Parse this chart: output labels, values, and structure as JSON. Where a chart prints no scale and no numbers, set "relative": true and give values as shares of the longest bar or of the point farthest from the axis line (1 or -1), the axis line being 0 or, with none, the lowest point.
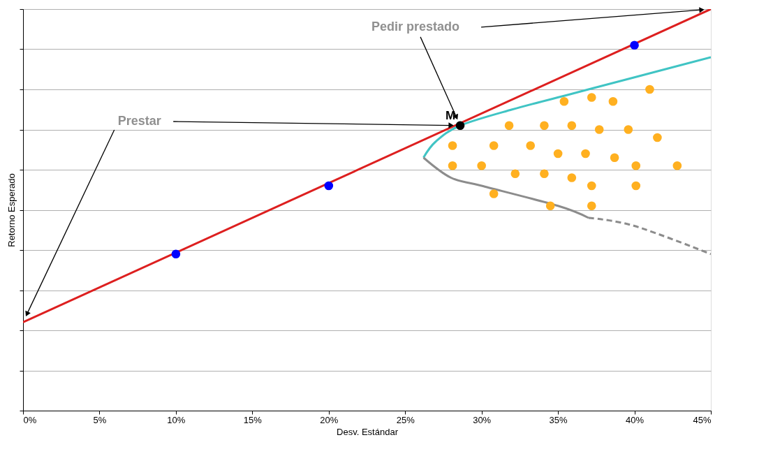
{
  "chart_data": {
    "type": "line",
    "xlabel": "Desv. Estándar",
    "ylabel": "Retorno Esperado",
    "relative": true,
    "tick_labels": "x",
    "grid": "y",
    "xlim": [
      0,
      45
    ],
    "xticks": [
      {
        "value": 0,
        "label": "0%"
      },
      {
        "value": 5,
        "label": "5%"
      },
      {
        "value": 10,
        "label": "10%"
      },
      {
        "value": 15,
        "label": "15%"
      },
      {
        "value": 20,
        "label": "20%"
      },
      {
        "value": 25,
        "label": "25%"
      },
      {
        "value": 30,
        "label": "30%"
      },
      {
        "value": 35,
        "label": "35%"
      },
      {
        "value": 40,
        "label": "40%"
      },
      {
        "value": 45,
        "label": "45%"
      }
    ],
    "series": [
      {
        "type": "line",
        "color": "#dd1f1f",
        "line_style": "solid",
        "x": [
          0,
          45
        ],
        "values": [
          0.22,
          1.0
        ]
      },
      {
        "type": "line",
        "color": "#40c4c4",
        "line_style": "solid",
        "x": [
          26.2,
          27,
          28.6,
          32,
          36,
          40,
          45
        ],
        "values": [
          0.63,
          0.67,
          0.71,
          0.75,
          0.79,
          0.83,
          0.88
        ]
      },
      {
        "type": "line",
        "color": "#8c8c8c",
        "line_style": "solid",
        "x": [
          26.2,
          28,
          30,
          35,
          37
        ],
        "values": [
          0.63,
          0.58,
          0.56,
          0.51,
          0.48
        ]
      },
      {
        "type": "line",
        "color": "#8c8c8c",
        "line_style": "dashed",
        "x": [
          37,
          40,
          45
        ],
        "values": [
          0.48,
          0.46,
          0.39
        ]
      },
      {
        "type": "scatter",
        "color": "#0000ff",
        "marker": "circle",
        "x": [
          10,
          20,
          40
        ],
        "values": [
          0.39,
          0.56,
          0.91
        ]
      },
      {
        "type": "scatter",
        "color": "#000000",
        "marker": "circle",
        "x": [
          28.6
        ],
        "values": [
          0.71
        ]
      },
      {
        "type": "scatter",
        "color": "#ffb020",
        "marker": "circle",
        "x": [
          28.1,
          28.1,
          30.0,
          30.8,
          30.8,
          31.8,
          32.2,
          33.2,
          34.1,
          34.1,
          34.5,
          35.0,
          35.4,
          35.9,
          35.9,
          36.8,
          37.2,
          37.2,
          37.2,
          37.7,
          38.6,
          38.7,
          39.6,
          40.1,
          40.1,
          41.0,
          41.5,
          42.8
        ],
        "values": [
          0.66,
          0.61,
          0.61,
          0.66,
          0.54,
          0.71,
          0.59,
          0.66,
          0.71,
          0.59,
          0.51,
          0.64,
          0.77,
          0.71,
          0.58,
          0.64,
          0.78,
          0.56,
          0.51,
          0.7,
          0.77,
          0.63,
          0.7,
          0.61,
          0.56,
          0.8,
          0.68,
          0.61
        ]
      }
    ],
    "annotations": [
      {
        "text": "M",
        "x": 28.6,
        "y": 0.71
      },
      "Prestar",
      "Pedir prestado"
    ]
  }
}
